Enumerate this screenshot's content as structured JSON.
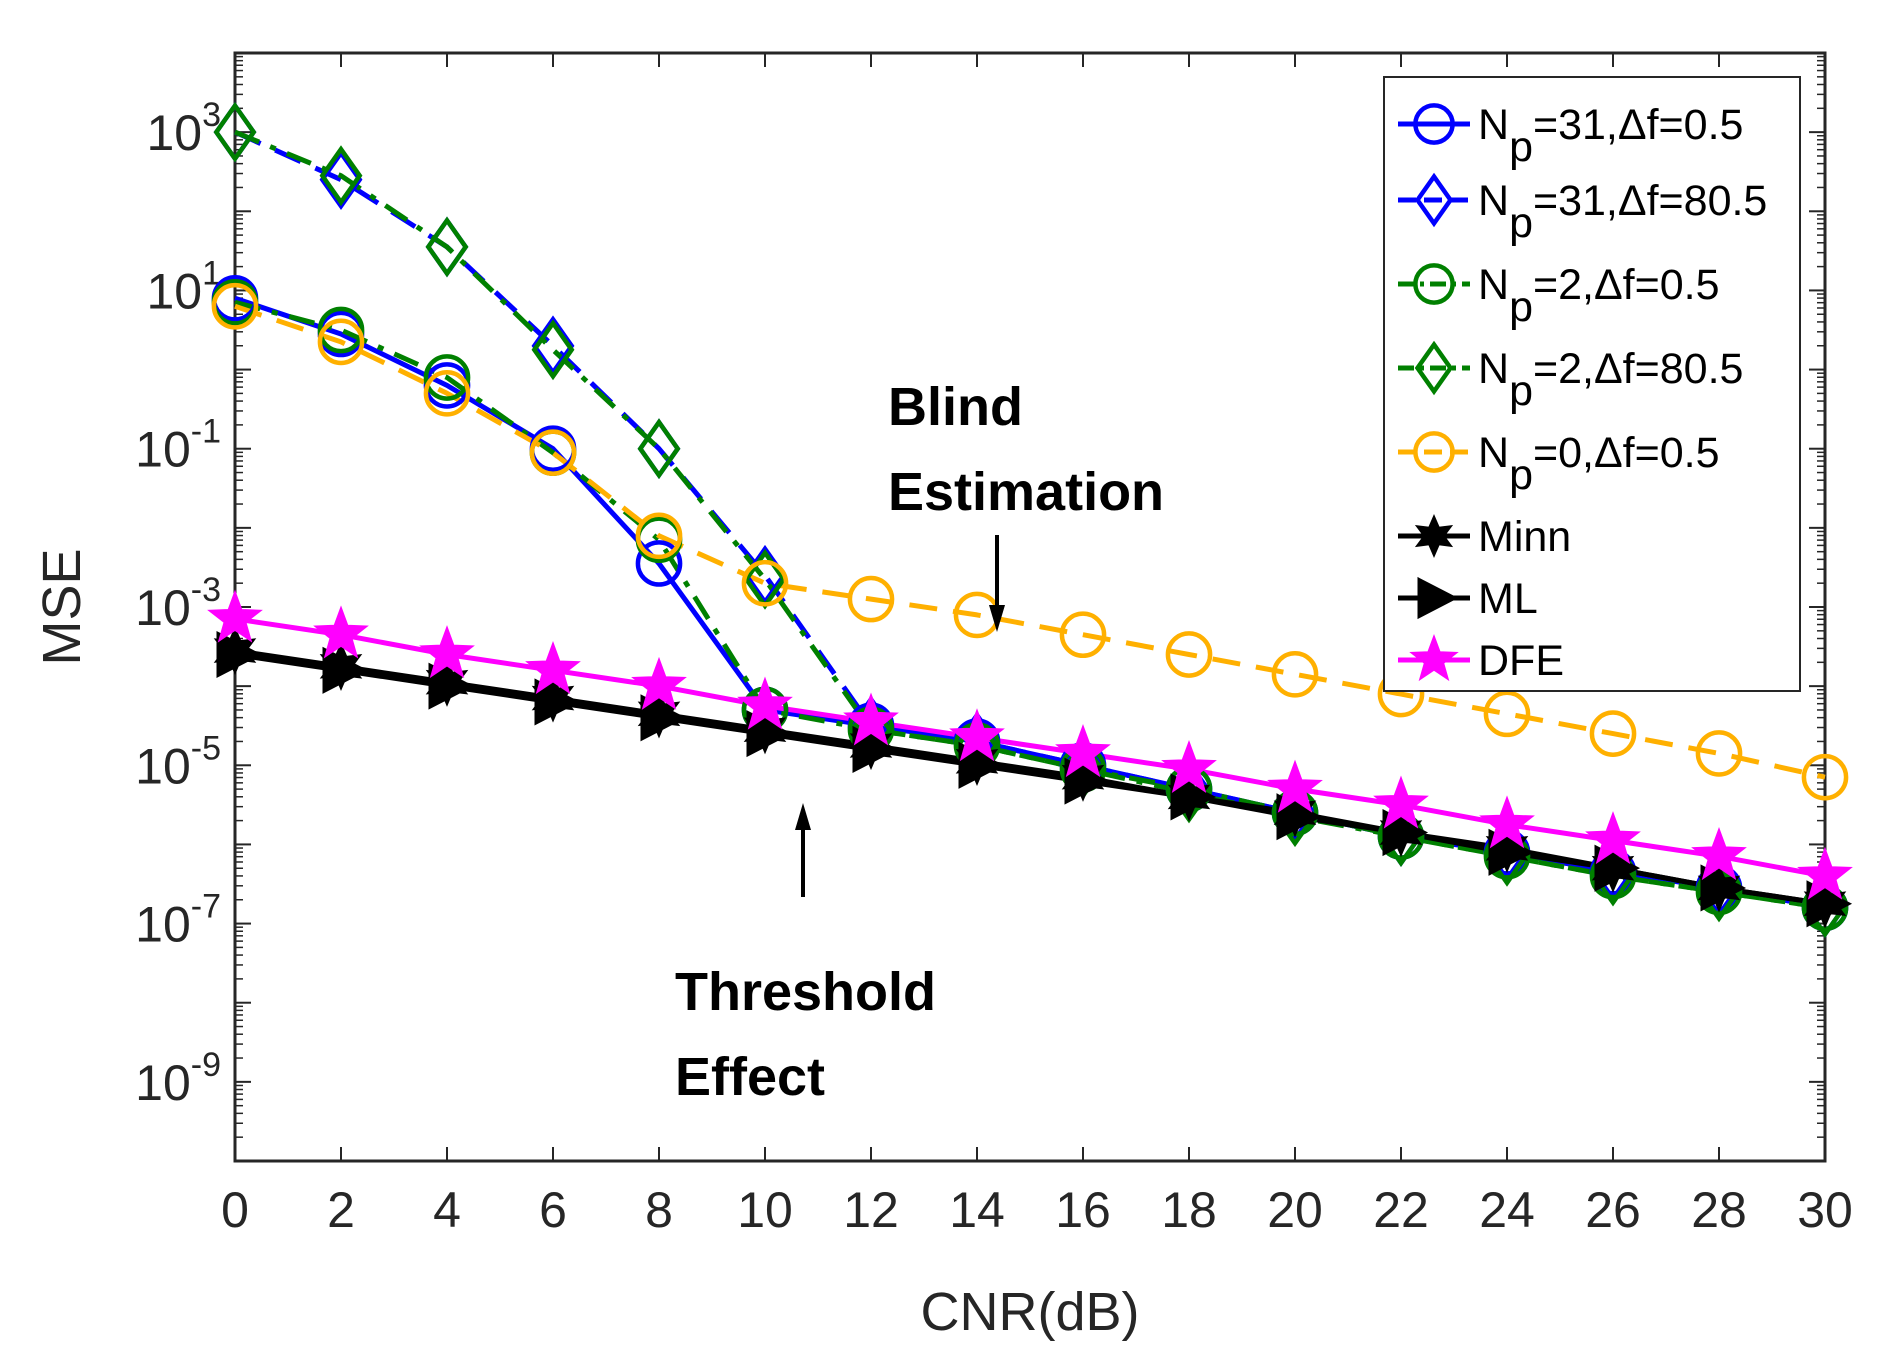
{
  "chart_data": {
    "type": "line",
    "title": "",
    "xlabel": "CNR(dB)",
    "ylabel": "MSE",
    "xlim": [
      0,
      30
    ],
    "ylim_log10": [
      -10,
      4
    ],
    "yscale": "log",
    "grid": false,
    "legend_position": "top-right",
    "x_ticks": [
      "0",
      "2",
      "4",
      "6",
      "8",
      "10",
      "12",
      "14",
      "16",
      "18",
      "20",
      "22",
      "24",
      "26",
      "28",
      "30"
    ],
    "y_ticks": [
      {
        "base": "10",
        "exp": "3"
      },
      {
        "base": "10",
        "exp": "1"
      },
      {
        "base": "10",
        "exp": "-1"
      },
      {
        "base": "10",
        "exp": "-3"
      },
      {
        "base": "10",
        "exp": "-5"
      },
      {
        "base": "10",
        "exp": "-7"
      },
      {
        "base": "10",
        "exp": "-9"
      }
    ],
    "x": [
      0,
      2,
      4,
      6,
      8,
      10,
      12,
      14,
      16,
      18,
      20,
      22,
      24,
      26,
      28,
      30
    ],
    "series": [
      {
        "name": "Np=31,Δf=0.5",
        "label_main": "N",
        "label_sub": "p",
        "label_rest": "=31,Δf=0.5",
        "color": "#0000ff",
        "dash": "solid",
        "marker": "circle",
        "log10_values": [
          0.9,
          0.45,
          -0.2,
          -1.0,
          -2.45,
          -4.3,
          -4.5,
          -4.7,
          -5.0,
          -5.3,
          -5.6,
          -5.9,
          -6.1,
          -6.35,
          -6.55,
          -6.8
        ]
      },
      {
        "name": "Np=31,Δf=80.5",
        "label_main": "N",
        "label_sub": "p",
        "label_rest": "=31,Δf=80.5",
        "color": "#0000ff",
        "dash": "dash",
        "marker": "diamond",
        "log10_values": [
          3.0,
          2.4,
          1.55,
          0.3,
          -1.0,
          -2.6,
          -4.5,
          -4.7,
          -5.0,
          -5.3,
          -5.6,
          -5.9,
          -6.1,
          -6.35,
          -6.55,
          -6.8
        ]
      },
      {
        "name": "Np=2,Δf=0.5",
        "label_main": "N",
        "label_sub": "p",
        "label_rest": "=2,Δf=0.5",
        "color": "#008000",
        "dash": "dashdot",
        "marker": "circle",
        "log10_values": [
          0.85,
          0.5,
          -0.1,
          -1.05,
          -2.15,
          -4.3,
          -4.55,
          -4.75,
          -5.05,
          -5.3,
          -5.6,
          -5.9,
          -6.15,
          -6.4,
          -6.6,
          -6.8
        ]
      },
      {
        "name": "Np=2,Δf=80.5",
        "label_main": "N",
        "label_sub": "p",
        "label_rest": "=2,Δf=80.5",
        "color": "#008000",
        "dash": "dashdot",
        "marker": "diamond",
        "log10_values": [
          3.0,
          2.45,
          1.55,
          0.25,
          -1.0,
          -2.65,
          -4.55,
          -4.75,
          -5.05,
          -5.35,
          -5.65,
          -5.9,
          -6.15,
          -6.4,
          -6.6,
          -6.8
        ]
      },
      {
        "name": "Np=0,Δf=0.5",
        "label_main": "N",
        "label_sub": "p",
        "label_rest": "=0,Δf=0.5",
        "color": "#ffb000",
        "dash": "dash",
        "marker": "circle",
        "log10_values": [
          0.8,
          0.35,
          -0.3,
          -1.05,
          -2.1,
          -2.7,
          -2.9,
          -3.1,
          -3.35,
          -3.6,
          -3.85,
          -4.1,
          -4.35,
          -4.6,
          -4.85,
          -5.15
        ]
      },
      {
        "name": "Minn",
        "label_main": "Minn",
        "label_sub": "",
        "label_rest": "",
        "color": "#000000",
        "dash": "solid",
        "marker": "star6",
        "log10_values": [
          -3.55,
          -3.75,
          -3.95,
          -4.15,
          -4.35,
          -4.55,
          -4.75,
          -4.95,
          -5.15,
          -5.4,
          -5.6,
          -5.85,
          -6.05,
          -6.3,
          -6.55,
          -6.75
        ]
      },
      {
        "name": "ML",
        "label_main": "ML",
        "label_sub": "",
        "label_rest": "",
        "color": "#000000",
        "dash": "solid",
        "marker": "triangle-right",
        "log10_values": [
          -3.6,
          -3.8,
          -4.0,
          -4.2,
          -4.4,
          -4.6,
          -4.8,
          -5.0,
          -5.2,
          -5.4,
          -5.65,
          -5.85,
          -6.1,
          -6.3,
          -6.55,
          -6.75
        ]
      },
      {
        "name": "DFE",
        "label_main": "DFE",
        "label_sub": "",
        "label_rest": "",
        "color": "#ff00ff",
        "dash": "solid",
        "marker": "pentagram",
        "log10_values": [
          -3.15,
          -3.35,
          -3.6,
          -3.8,
          -4.0,
          -4.25,
          -4.45,
          -4.65,
          -4.85,
          -5.05,
          -5.3,
          -5.5,
          -5.75,
          -5.95,
          -6.15,
          -6.4
        ]
      }
    ],
    "annotations": [
      {
        "lines": [
          "Blind",
          "Estimation"
        ],
        "arrow": "down"
      },
      {
        "lines": [
          "Threshold",
          "Effect"
        ],
        "arrow": "up"
      }
    ]
  }
}
